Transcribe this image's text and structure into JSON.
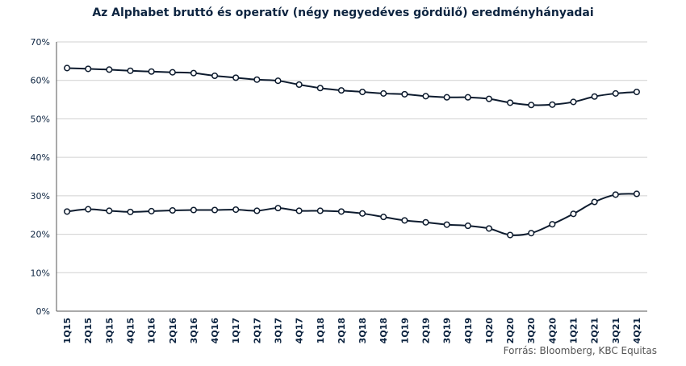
{
  "title": "Az Alphabet bruttó és operatív (négy negyedéves gördülő) eredményhányadai",
  "source": "Forrás: Bloomberg, KBC Equitas",
  "colors": {
    "line": "#0d1b2e",
    "marker_fill": "#ffffff",
    "grid": "#d0d0d0",
    "axis": "#555555",
    "tick_text": "#0d2440"
  },
  "chart_data": {
    "type": "line",
    "categories": [
      "1Q15",
      "2Q15",
      "3Q15",
      "4Q15",
      "1Q16",
      "2Q16",
      "3Q16",
      "4Q16",
      "1Q17",
      "2Q17",
      "3Q17",
      "4Q17",
      "1Q18",
      "2Q18",
      "3Q18",
      "4Q18",
      "1Q19",
      "2Q19",
      "3Q19",
      "4Q19",
      "1Q20",
      "2Q20",
      "3Q20",
      "4Q20",
      "1Q21",
      "2Q21",
      "3Q21",
      "4Q21"
    ],
    "y_ticks": [
      "0%",
      "10%",
      "20%",
      "30%",
      "40%",
      "50%",
      "60%",
      "70%"
    ],
    "ylim": [
      0,
      70
    ],
    "grid": true,
    "series": [
      {
        "values": [
          63.2,
          63.0,
          62.8,
          62.5,
          62.3,
          62.1,
          61.9,
          61.2,
          60.7,
          60.2,
          59.9,
          58.9,
          58.0,
          57.4,
          57.0,
          56.6,
          56.4,
          55.9,
          55.6,
          55.6,
          55.2,
          54.2,
          53.6,
          53.7,
          54.4,
          55.8,
          56.6,
          57.0
        ]
      },
      {
        "values": [
          25.9,
          26.5,
          26.1,
          25.8,
          26.0,
          26.2,
          26.3,
          26.3,
          26.4,
          26.1,
          26.8,
          26.1,
          26.1,
          25.9,
          25.4,
          24.5,
          23.6,
          23.1,
          22.5,
          22.2,
          21.5,
          19.8,
          20.3,
          22.6,
          25.3,
          28.4,
          30.3,
          30.5
        ]
      }
    ]
  }
}
